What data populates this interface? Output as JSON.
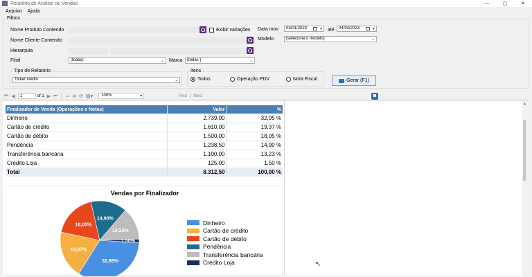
{
  "window": {
    "title": "Relatório de Análise de Vendas",
    "minimize": "—",
    "maximize": "▢",
    "close": "✕"
  },
  "menu": [
    {
      "label": "Arquivo"
    },
    {
      "label": "Ajuda"
    }
  ],
  "filters": {
    "group_label": "Filtros",
    "produto_label": "Nome Produto Contendo",
    "exibir_variacoes_label": "Exibir variações",
    "cliente_label": "Nome Cliente Contendo",
    "hierarquia_label": "Hierarquia",
    "filial_label": "Filial",
    "filial_value": "(todas)",
    "marca_label": "Marca",
    "marca_value": "(todas )",
    "data_mov_label": "Data mov",
    "date_from": "03/01/2023",
    "ate_label": "até",
    "date_to": "04/04/2023",
    "modelo_label": "Modelo",
    "modelo_value": "(selecione o modelo)",
    "tipo_label": "Tipo de Relatório",
    "tipo_value": "Ticket médio",
    "itens_label": "Itens",
    "itens_options": [
      "Todos",
      "Operação PDV",
      "Nota Fiscal"
    ],
    "itens_selected": "Todos",
    "gerar_label": "Gerar (F1)"
  },
  "toolbar": {
    "page": "1",
    "of_label": "of 1",
    "zoom": "100%",
    "find": "Find",
    "next": "Next"
  },
  "table": {
    "headers": [
      "Finalizador de Venda (Operações e Notas)",
      "Valor",
      "%"
    ],
    "rows": [
      [
        "Dinheiro",
        "2.739,00",
        "32,95 %"
      ],
      [
        "Cartão de crédito",
        "1.610,00",
        "19,37 %"
      ],
      [
        "Cartão de débito",
        "1.500,00",
        "18,05 %"
      ],
      [
        "Pendência",
        "1.238,50",
        "14,90 %"
      ],
      [
        "Transferência bancária",
        "1.100,00",
        "13,23 %"
      ],
      [
        "Crédito Loja",
        "125,00",
        "1,50 %"
      ]
    ],
    "total": [
      "Total",
      "8.312,50",
      "100,00 %"
    ]
  },
  "chart_data": {
    "type": "pie",
    "title": "Vendas por Finalizador",
    "categories": [
      "Dinheiro",
      "Cartão de crédito",
      "Cartão de débito",
      "Pendência",
      "Transferência bancária",
      "Crédito Loja"
    ],
    "values": [
      32.95,
      19.37,
      18.05,
      14.9,
      13.23,
      1.5
    ],
    "labels": [
      "32,95%",
      "19,37%",
      "18,05%",
      "14,90%",
      "13,23%",
      "1,50%"
    ],
    "colors": [
      "#4a90e2",
      "#f5b041",
      "#e8471e",
      "#1f6b8c",
      "#bdbdbd",
      "#1b2f5e"
    ],
    "legend_position": "right"
  }
}
